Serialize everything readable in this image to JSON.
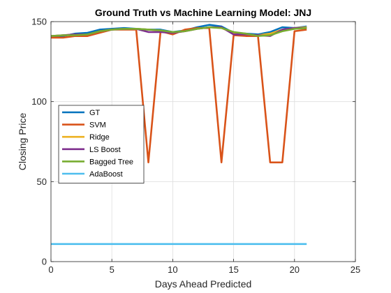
{
  "chart_data": {
    "type": "line",
    "title": "Ground Truth vs Machine Learning Model: JNJ",
    "xlabel": "Days Ahead Predicted",
    "ylabel": "Closing Price",
    "xlim": [
      0,
      25
    ],
    "ylim": [
      0,
      150
    ],
    "xticks": [
      0,
      5,
      10,
      15,
      20,
      25
    ],
    "yticks": [
      0,
      50,
      100,
      150
    ],
    "grid": true,
    "legend_position": "middle-left",
    "x": [
      0,
      1,
      2,
      3,
      4,
      5,
      6,
      7,
      8,
      9,
      10,
      11,
      12,
      13,
      14,
      15,
      16,
      17,
      18,
      19,
      20,
      21
    ],
    "series": [
      {
        "name": "GT",
        "color": "#0072BD",
        "values": [
          140.5,
          141,
          142.5,
          143,
          145,
          145.5,
          146,
          145.5,
          145,
          145,
          143.5,
          144.5,
          146.5,
          148,
          147,
          143,
          142.5,
          142,
          143.5,
          146.5,
          146,
          147
        ]
      },
      {
        "name": "SVM",
        "color": "#D95319",
        "values": [
          140,
          140,
          141,
          141,
          143,
          145,
          145,
          145,
          62,
          144,
          142,
          145,
          146,
          146,
          62,
          141.5,
          141,
          141,
          62,
          62,
          144,
          145
        ]
      },
      {
        "name": "Ridge",
        "color": "#EDB120",
        "values": [
          141,
          141.5,
          142,
          142,
          144,
          145,
          145.5,
          145.5,
          145,
          144.5,
          143,
          144,
          145.5,
          146.5,
          146,
          143,
          142,
          141.5,
          142.5,
          145,
          146,
          146.5
        ]
      },
      {
        "name": "LS Boost",
        "color": "#7E2F8E",
        "values": [
          141,
          141.5,
          142,
          142,
          144,
          145,
          145.5,
          145.5,
          143.5,
          143.5,
          143,
          144,
          145.5,
          146.5,
          146.5,
          142,
          142,
          141.5,
          141,
          145,
          146,
          146
        ]
      },
      {
        "name": "Bagged Tree",
        "color": "#77AC30",
        "values": [
          141,
          141.5,
          141.5,
          142,
          144,
          145,
          145.5,
          145.5,
          145,
          144.5,
          143.5,
          144,
          145.5,
          146.5,
          146,
          143.5,
          142.5,
          141,
          141.5,
          144,
          145.5,
          146
        ]
      },
      {
        "name": "AdaBoost",
        "color": "#4DBEEE",
        "values": [
          11,
          11,
          11,
          11,
          11,
          11,
          11,
          11,
          11,
          11,
          11,
          11,
          11,
          11,
          11,
          11,
          11,
          11,
          11,
          11,
          11,
          11
        ]
      }
    ]
  }
}
